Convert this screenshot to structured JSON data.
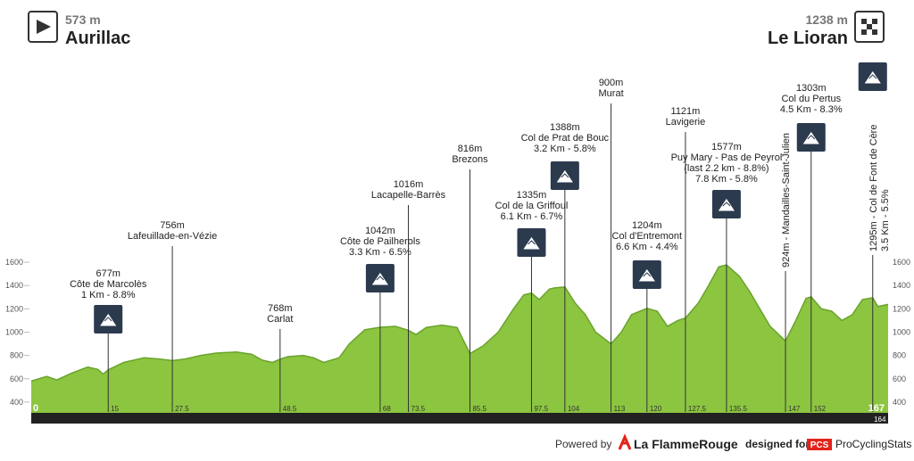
{
  "header": {
    "start": {
      "elevation": "573 m",
      "name": "Aurillac"
    },
    "finish": {
      "elevation": "1238 m",
      "name": "Le Lioran"
    }
  },
  "chart_data": {
    "type": "area",
    "color": "#8cc540",
    "x": [
      0,
      3,
      5,
      8,
      11,
      13,
      14,
      15,
      18,
      22,
      25,
      27.5,
      30,
      33,
      36,
      40,
      43,
      45,
      47,
      48.5,
      50,
      53,
      55,
      57,
      60,
      62,
      65,
      68,
      71,
      73.5,
      75,
      77,
      80,
      83,
      85.5,
      88,
      91,
      94,
      96,
      97.5,
      99,
      101,
      102,
      104,
      106,
      108,
      110,
      113,
      115,
      117,
      120,
      122,
      124,
      126,
      127.5,
      130,
      132,
      134,
      135.5,
      138,
      140,
      142,
      144,
      147,
      149,
      151,
      152,
      154,
      156,
      158,
      160,
      162,
      164,
      165,
      167
    ],
    "values": [
      580,
      620,
      590,
      650,
      700,
      680,
      640,
      677,
      740,
      780,
      770,
      756,
      770,
      800,
      820,
      830,
      810,
      760,
      740,
      768,
      790,
      800,
      780,
      740,
      780,
      900,
      1020,
      1042,
      1050,
      1016,
      980,
      1040,
      1060,
      1040,
      816,
      880,
      1000,
      1200,
      1320,
      1335,
      1280,
      1370,
      1380,
      1388,
      1250,
      1150,
      1000,
      900,
      1000,
      1150,
      1204,
      1180,
      1050,
      1100,
      1121,
      1250,
      1400,
      1560,
      1577,
      1480,
      1350,
      1200,
      1050,
      924,
      1100,
      1290,
      1303,
      1200,
      1180,
      1100,
      1150,
      1280,
      1295,
      1220,
      1238
    ],
    "xlim": [
      0,
      167
    ],
    "xticks": [
      0,
      167
    ],
    "ylim": [
      300,
      1700
    ],
    "yticks": [
      400,
      600,
      800,
      1000,
      1200,
      1400,
      1600
    ],
    "waypoints": [
      {
        "km": 15,
        "lines": [
          "677m",
          "Côte de Marcolès",
          "1 Km - 8.8%"
        ],
        "climb": true
      },
      {
        "km": 27.5,
        "lines": [
          "756m",
          "Lafeuillade-en-Vézie"
        ],
        "climb": false
      },
      {
        "km": 48.5,
        "lines": [
          "768m",
          "Carlat"
        ],
        "climb": false
      },
      {
        "km": 68,
        "lines": [
          "1042m",
          "Côte de Pailherols",
          "3.3 Km - 6.5%"
        ],
        "climb": true
      },
      {
        "km": 73.5,
        "lines": [
          "1016m",
          "Lacapelle-Barrès"
        ],
        "climb": false
      },
      {
        "km": 85.5,
        "lines": [
          "816m",
          "Brezons"
        ],
        "climb": false
      },
      {
        "km": 97.5,
        "lines": [
          "1335m",
          "Col de la Griffoul",
          "6.1 Km - 6.7%"
        ],
        "climb": true
      },
      {
        "km": 104,
        "lines": [
          "1388m",
          "Col de Prat de Bouc",
          "3.2 Km - 5.8%"
        ],
        "climb": true
      },
      {
        "km": 113,
        "lines": [
          "900m",
          "Murat"
        ],
        "climb": false
      },
      {
        "km": 120,
        "lines": [
          "1204m",
          "Col d'Entremont",
          "6.6 Km - 4.4%"
        ],
        "climb": true
      },
      {
        "km": 127.5,
        "lines": [
          "1121m",
          "Lavigerie"
        ],
        "climb": false
      },
      {
        "km": 135.5,
        "lines": [
          "1577m",
          "Puy Mary - Pas de Peyrol",
          "(last 2.2 km - 8.8%)",
          "7.8 Km - 5.8%"
        ],
        "climb": true
      },
      {
        "km": 147,
        "lines": [
          "924m - Mandailles-Saint-Julien"
        ],
        "climb": false
      },
      {
        "km": 152,
        "lines": [
          "1303m",
          "Col du Pertus",
          "4.5 Km - 8.3%"
        ],
        "climb": true
      },
      {
        "km": 164,
        "lines": [
          "1295m - Col de Font de Cère",
          "3.5 Km - 5.5%"
        ],
        "climb": true
      }
    ]
  },
  "footer": {
    "powered": "Powered by",
    "brand": "La FlammeRouge",
    "designed": "designed for",
    "pcs": "PCS",
    "pcs_name": "ProCyclingStats"
  }
}
